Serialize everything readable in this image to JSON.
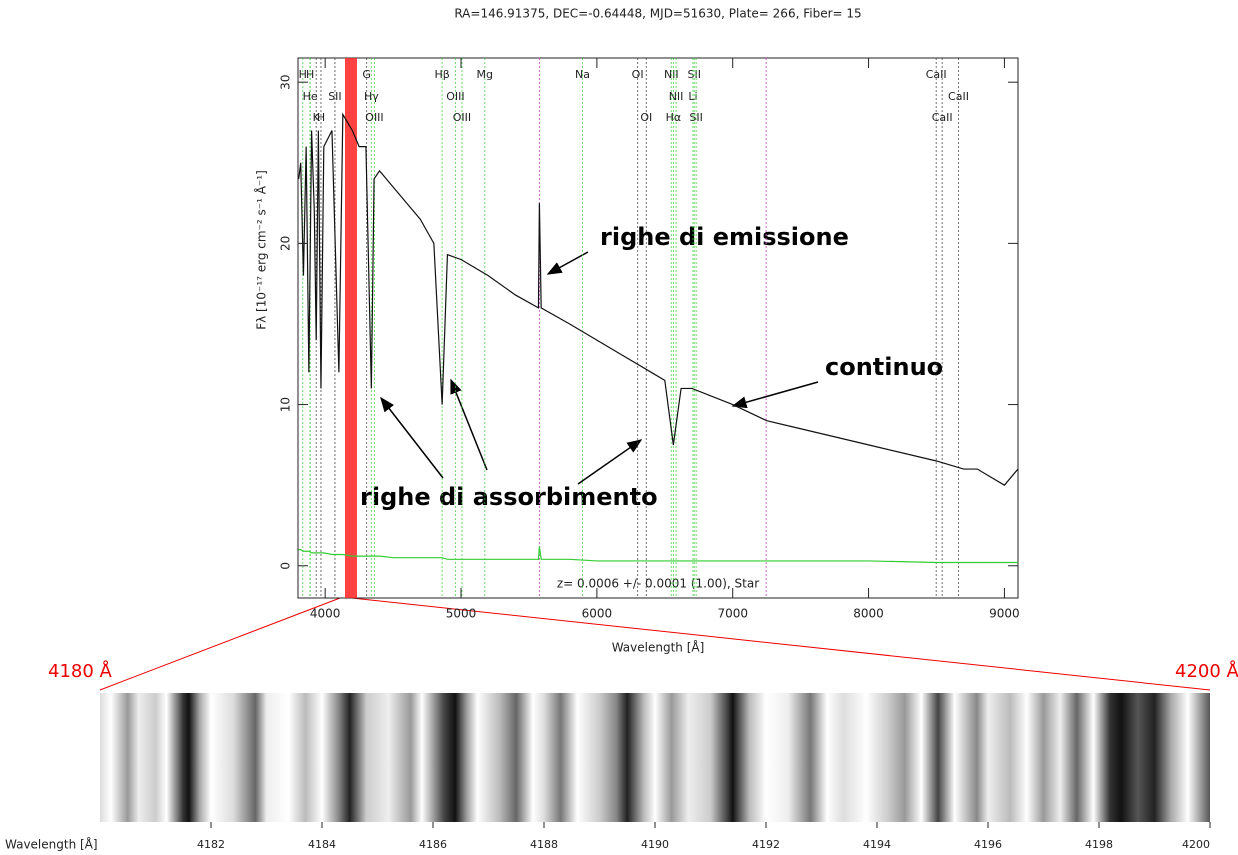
{
  "chart_data": [
    {
      "type": "line",
      "title": "RA=146.91375, DEC=-0.64448, MJD=51630, Plate= 266, Fiber= 15",
      "x_label": "Wavelength [Å]",
      "y_label": "Fλ [10⁻¹⁷ erg cm⁻² s⁻¹ Å⁻¹]",
      "xlim": [
        3800,
        9100
      ],
      "ylim": [
        -2,
        31.5
      ],
      "xticks": [
        4000,
        5000,
        6000,
        7000,
        8000,
        9000
      ],
      "yticks": [
        0,
        10,
        20,
        30
      ],
      "x": [
        3805,
        3820,
        3840,
        3860,
        3880,
        3900,
        3920,
        3934,
        3950,
        3969,
        3990,
        4050,
        4101,
        4130,
        4200,
        4250,
        4300,
        4340,
        4360,
        4400,
        4500,
        4600,
        4700,
        4800,
        4861,
        4900,
        5000,
        5200,
        5400,
        5570,
        5577,
        5590,
        5800,
        6000,
        6200,
        6300,
        6400,
        6500,
        6563,
        6620,
        6700,
        7000,
        7250,
        7500,
        8000,
        8500,
        8700,
        8800,
        8900,
        9000,
        9100
      ],
      "series": [
        {
          "color": "#111111",
          "values": [
            24,
            25,
            18,
            26,
            12,
            27,
            22,
            14,
            27,
            11,
            26,
            27,
            12,
            28,
            27,
            26,
            26,
            11,
            24,
            24.5,
            23.5,
            22.5,
            21.5,
            20,
            10,
            19.3,
            19,
            18,
            16.8,
            16,
            22.5,
            16,
            15,
            14,
            13,
            12.5,
            12,
            11.5,
            7.5,
            11,
            11,
            10,
            9,
            8.5,
            7.5,
            6.5,
            6,
            6,
            5.5,
            5,
            6
          ]
        },
        {
          "color": "#33cc33",
          "values": [
            1,
            1,
            0.9,
            0.9,
            0.9,
            0.8,
            0.8,
            0.8,
            0.8,
            0.8,
            0.8,
            0.7,
            0.7,
            0.7,
            0.6,
            0.6,
            0.6,
            0.6,
            0.6,
            0.6,
            0.5,
            0.5,
            0.5,
            0.5,
            0.5,
            0.4,
            0.4,
            0.4,
            0.4,
            0.4,
            1.2,
            0.4,
            0.4,
            0.3,
            0.3,
            0.3,
            0.3,
            0.3,
            0.3,
            0.3,
            0.3,
            0.3,
            0.3,
            0.3,
            0.3,
            0.2,
            0.2,
            0.2,
            0.2,
            0.2,
            0.2
          ]
        }
      ],
      "line_labels": [
        [
          {
            "label": "H",
            "x": 3835,
            "color": "#33cc33"
          },
          {
            "label": "H",
            "x": 3889,
            "color": "#33cc33"
          },
          {
            "label": "G",
            "x": 4305,
            "color": "#333333"
          },
          {
            "label": "Hβ",
            "x": 4861,
            "color": "#33cc33"
          },
          {
            "label": "Mg",
            "x": 5175,
            "color": "#33cc33"
          },
          {
            "label": "Na",
            "x": 5894,
            "color": "#33cc33"
          },
          {
            "label": "OI",
            "x": 6300,
            "color": "#333333"
          },
          {
            "label": "NII",
            "x": 6548,
            "color": "#33cc33"
          },
          {
            "label": "SII",
            "x": 6717,
            "color": "#33cc33"
          },
          {
            "label": "CaII",
            "x": 8498,
            "color": "#333333"
          }
        ],
        [
          {
            "label": "He",
            "x": 3889,
            "color": "#33cc33"
          },
          {
            "label": "SII",
            "x": 4072,
            "color": "#333333"
          },
          {
            "label": "Hγ",
            "x": 4340,
            "color": "#33cc33"
          },
          {
            "label": "OIII",
            "x": 4959,
            "color": "#33cc33"
          },
          {
            "label": "NII",
            "x": 6583,
            "color": "#33cc33"
          },
          {
            "label": "Li",
            "x": 6707,
            "color": "#33cc33"
          },
          {
            "label": "CaII",
            "x": 8662,
            "color": "#333333"
          }
        ],
        [
          {
            "label": "K",
            "x": 3934,
            "color": "#333333"
          },
          {
            "label": "H",
            "x": 3969,
            "color": "#333333"
          },
          {
            "label": "OIII",
            "x": 4363,
            "color": "#33cc33"
          },
          {
            "label": "OIII",
            "x": 5007,
            "color": "#33cc33"
          },
          {
            "label": "OI",
            "x": 6364,
            "color": "#333333"
          },
          {
            "label": "Hα",
            "x": 6563,
            "color": "#33cc33"
          },
          {
            "label": "SII",
            "x": 6731,
            "color": "#33cc33"
          },
          {
            "label": "CaII",
            "x": 8542,
            "color": "#333333"
          }
        ]
      ],
      "sky_lines": [
        5577,
        7246
      ],
      "sky_color": "#cc66cc",
      "highlight": [
        4180,
        4200
      ],
      "highlight_color": "#ff2222",
      "note": "z= 0.0006 +/- 0.0001 (1.00), Star",
      "annotations": [
        "righe di emissione",
        "continuo",
        "righe di assorbimento"
      ]
    },
    {
      "type": "strip",
      "x_label": "Wavelength [Å]",
      "xlim": [
        4180,
        4200
      ],
      "xticks": [
        4182,
        4184,
        4186,
        4188,
        4190,
        4192,
        4194,
        4196,
        4198,
        4200
      ],
      "range_labels": [
        "4180 Å",
        "4200 Å"
      ]
    }
  ]
}
